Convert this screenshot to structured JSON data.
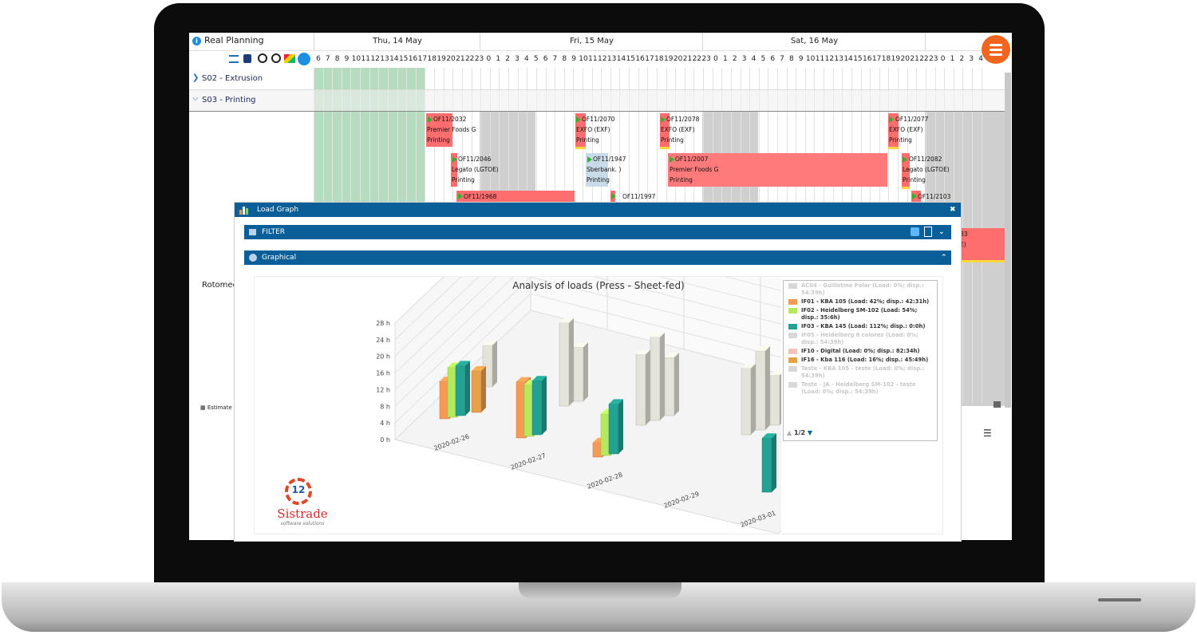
{
  "app": {
    "title": "Real Planning",
    "info_icon": "info-icon",
    "toolbar_icons": [
      "list-icon",
      "print-icon",
      "zoom-out-icon",
      "zoom-in-icon",
      "color-palette-icon",
      "menu-list-icon"
    ],
    "fab_icon": "hamburger-menu-icon",
    "accent": "#0b5f98",
    "fab_color": "#f2651f"
  },
  "timeline": {
    "days": [
      {
        "label": "Thu, 14 May",
        "hours": [
          "6",
          "7",
          "8",
          "9",
          "10",
          "11",
          "12",
          "13",
          "14",
          "15",
          "16",
          "17",
          "18",
          "19",
          "20",
          "21",
          "22",
          "23"
        ]
      },
      {
        "label": "Fri, 15 May",
        "hours": [
          "0",
          "1",
          "2",
          "3",
          "4",
          "5",
          "6",
          "7",
          "8",
          "9",
          "10",
          "11",
          "12",
          "13",
          "14",
          "15",
          "16",
          "17",
          "18",
          "19",
          "20",
          "21",
          "22",
          "23"
        ]
      },
      {
        "label": "Sat, 16 May",
        "hours": [
          "0",
          "1",
          "2",
          "3",
          "4",
          "5",
          "6",
          "7",
          "8",
          "9",
          "10",
          "11",
          "12",
          "13",
          "14",
          "15",
          "16",
          "17",
          "18",
          "19",
          "20",
          "21",
          "22",
          "23"
        ]
      },
      {
        "label": "",
        "hours": [
          "0",
          "1",
          "2",
          "3",
          "4",
          "5",
          "6"
        ]
      }
    ]
  },
  "rows": [
    {
      "label": "S02 - Extrusion",
      "expanded": false
    },
    {
      "label": "S03 - Printing",
      "expanded": true
    },
    {
      "label": "Rotomec"
    }
  ],
  "tasks": [
    {
      "id": "OF11/2032",
      "client": "Premier Foods G",
      "op": "Printing"
    },
    {
      "id": "OF11/2070",
      "client": "EXFO (EXF)",
      "op": "Printing"
    },
    {
      "id": "OF11/2078",
      "client": "EXFO (EXF)",
      "op": "Printing"
    },
    {
      "id": "OF11/2077",
      "client": "EXFO (EXF)",
      "op": "Printing"
    },
    {
      "id": "OF11/2046",
      "client": "Legato (LGTOE)",
      "op": "Printing"
    },
    {
      "id": "OF11/1947",
      "client": "Sberbank. )",
      "op": "Printing"
    },
    {
      "id": "OF11/2007",
      "client": "Premier Foods G",
      "op": "Printing"
    },
    {
      "id": "OF11/2082",
      "client": "Legato (LGTOE)",
      "op": "Printing"
    },
    {
      "id": "OF11/1968",
      "client": "",
      "op": ""
    },
    {
      "id": "OF11/1997",
      "client": "",
      "op": ""
    },
    {
      "id": "OF11/2103",
      "client": "",
      "op": ""
    }
  ],
  "side_label_partial": "Estimate",
  "right_partial": [
    "83",
    "E)"
  ],
  "dialog": {
    "title": "Load Graph",
    "filter_label": "FILTER",
    "graph_label": "Graphical",
    "close_icon": "close-icon",
    "filter_icons": [
      "filter-icon",
      "export-icon",
      "chevron-down-icon"
    ]
  },
  "logo": {
    "name": "Sistrade",
    "tagline": "software solutions",
    "badge": "12"
  },
  "chart_data": {
    "type": "bar",
    "title": "Analysis of loads (Press - Sheet-fed)",
    "x": [
      "2020-02-26",
      "2020-02-27",
      "2020-02-28",
      "2020-02-29",
      "2020-03-01"
    ],
    "y_ticks": [
      "28 h",
      "24 h",
      "20 h",
      "16 h",
      "12 h",
      "8 h",
      "4 h",
      "0 h"
    ],
    "ylim": [
      0,
      28
    ],
    "y_unit": "h",
    "three_d": true,
    "series": [
      {
        "name": "AC04 - Guillotine Polar (Load: 0%; disp.: 54:39h)",
        "color": "#cfcfcf",
        "visible": false,
        "values": [
          0,
          0,
          0,
          0,
          0
        ]
      },
      {
        "name": "IF01 - KBA 105 (Load: 42%; disp.: 42:31h)",
        "color": "#f59a55",
        "visible": true,
        "values": [
          9,
          13.5,
          3.5,
          0,
          0
        ]
      },
      {
        "name": "IF02 - Heidelberg SM-102 (Load: 54%; disp.: 35:6h)",
        "color": "#b6e85c",
        "visible": true,
        "values": [
          12,
          12.5,
          10,
          0,
          0
        ]
      },
      {
        "name": "IF03 - KBA 145 (Load: 112%; disp.: 0:0h)",
        "color": "#23a294",
        "visible": true,
        "values": [
          12,
          13,
          12,
          0,
          13
        ]
      },
      {
        "name": "IF05 - Heidelberg 8 colores (Load: 0%; disp.: 54:39h)",
        "color": "#cfcfcf",
        "visible": false,
        "values": [
          0,
          0,
          0,
          0,
          0
        ]
      },
      {
        "name": "IF10 - Digital (Load: 0%; disp.: 82:34h)",
        "color": "#f5c3bc",
        "visible": true,
        "values": [
          0,
          0,
          0,
          0,
          0
        ]
      },
      {
        "name": "IF16 - Kba 116 (Load: 16%; disp.: 45:49h)",
        "color": "#e9a04a",
        "visible": true,
        "values": [
          10,
          0,
          0,
          0,
          0
        ]
      },
      {
        "name": "Teste - KBA 105 - teste (Load: 0%; disp.: 54:39h)",
        "color": "#cfcfcf",
        "visible": false,
        "values": [
          0,
          0,
          0,
          0,
          0
        ]
      },
      {
        "name": "Teste - JA - Heidelberg SM-102 - teste (Load: 0%; disp.: 54:39h)",
        "color": "#cfcfcf",
        "visible": false,
        "values": [
          0,
          0,
          0,
          0,
          0
        ]
      }
    ],
    "background_series_values": [
      [
        10,
        0,
        0,
        0,
        0
      ],
      [
        20,
        13,
        0,
        0,
        0
      ],
      [
        17,
        20,
        14,
        0,
        0
      ],
      [
        0,
        0,
        16,
        19,
        12
      ],
      [
        0,
        0,
        0,
        15,
        16
      ]
    ],
    "legend": {
      "position": "top-right",
      "page": "1/2"
    },
    "grid": true
  },
  "menu_icon": "hamburger-icon"
}
